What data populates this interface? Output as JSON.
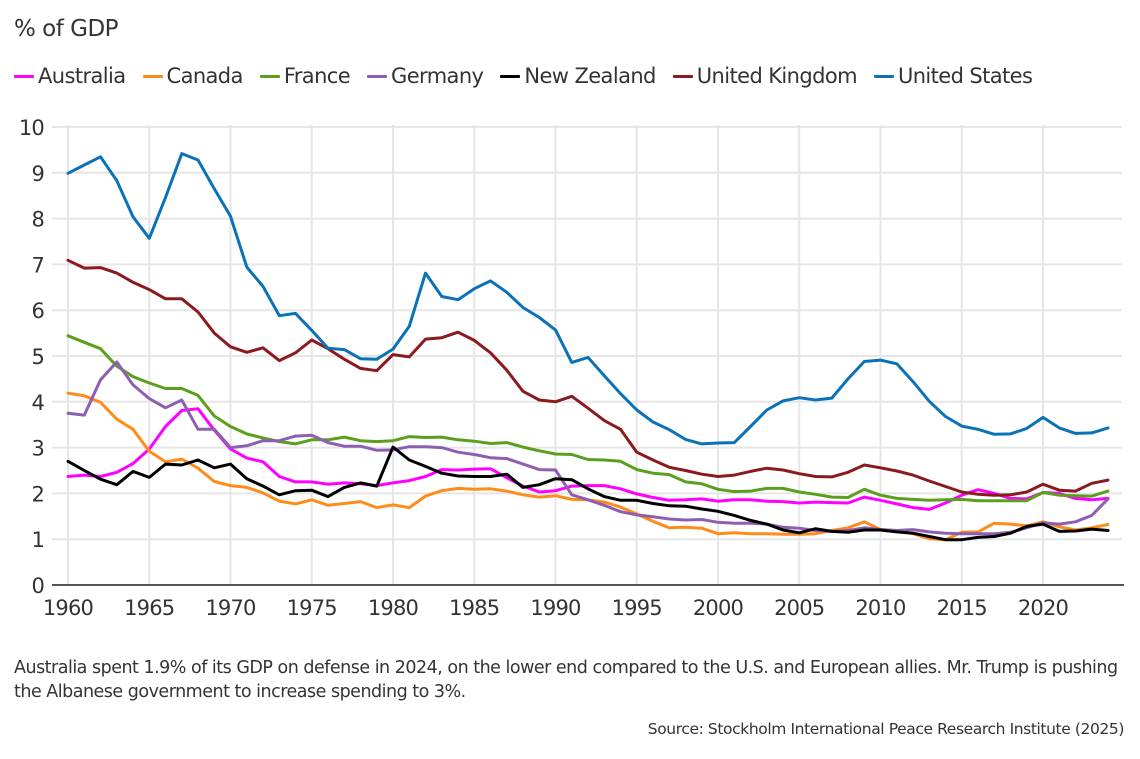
{
  "chart_data": {
    "type": "line",
    "title": "",
    "unit_label": "% of GDP",
    "xlabel": "",
    "ylabel": "% of GDP",
    "xlim": [
      1960,
      2024
    ],
    "ylim": [
      0,
      10
    ],
    "x_ticks": [
      1960,
      1965,
      1970,
      1975,
      1980,
      1985,
      1990,
      1995,
      2000,
      2005,
      2010,
      2015,
      2020
    ],
    "y_ticks": [
      0,
      1,
      2,
      3,
      4,
      5,
      6,
      7,
      8,
      9,
      10
    ],
    "grid": true,
    "legend_position": "top",
    "x": [
      1960,
      1961,
      1962,
      1963,
      1964,
      1965,
      1966,
      1967,
      1968,
      1969,
      1970,
      1971,
      1972,
      1973,
      1974,
      1975,
      1976,
      1977,
      1978,
      1979,
      1980,
      1981,
      1982,
      1983,
      1984,
      1985,
      1986,
      1987,
      1988,
      1989,
      1990,
      1991,
      1992,
      1993,
      1994,
      1995,
      1996,
      1997,
      1998,
      1999,
      2000,
      2001,
      2002,
      2003,
      2004,
      2005,
      2006,
      2007,
      2008,
      2009,
      2010,
      2011,
      2012,
      2013,
      2014,
      2015,
      2016,
      2017,
      2018,
      2019,
      2020,
      2021,
      2022,
      2023,
      2024
    ],
    "series": [
      {
        "name": "Australia",
        "color": "#ff00ff",
        "values": [
          2.37,
          2.4,
          2.37,
          2.46,
          2.65,
          2.97,
          3.46,
          3.81,
          3.85,
          3.38,
          2.97,
          2.77,
          2.69,
          2.37,
          2.25,
          2.25,
          2.2,
          2.23,
          2.21,
          2.17,
          2.23,
          2.28,
          2.37,
          2.52,
          2.51,
          2.53,
          2.54,
          2.34,
          2.16,
          2.03,
          2.06,
          2.16,
          2.17,
          2.17,
          2.1,
          1.99,
          1.91,
          1.85,
          1.86,
          1.88,
          1.83,
          1.86,
          1.86,
          1.83,
          1.82,
          1.79,
          1.81,
          1.8,
          1.79,
          1.92,
          1.85,
          1.77,
          1.69,
          1.65,
          1.79,
          1.96,
          2.08,
          2.0,
          1.89,
          1.88,
          2.02,
          2.0,
          1.89,
          1.86,
          1.89
        ]
      },
      {
        "name": "Canada",
        "color": "#ff8c1a",
        "values": [
          4.19,
          4.13,
          3.99,
          3.62,
          3.4,
          2.92,
          2.69,
          2.75,
          2.55,
          2.26,
          2.17,
          2.13,
          2.01,
          1.83,
          1.77,
          1.86,
          1.74,
          1.78,
          1.82,
          1.69,
          1.75,
          1.69,
          1.94,
          2.06,
          2.11,
          2.09,
          2.1,
          2.05,
          1.97,
          1.92,
          1.95,
          1.87,
          1.86,
          1.81,
          1.7,
          1.55,
          1.39,
          1.25,
          1.26,
          1.24,
          1.12,
          1.14,
          1.12,
          1.12,
          1.11,
          1.11,
          1.12,
          1.19,
          1.25,
          1.38,
          1.21,
          1.19,
          1.12,
          1.01,
          0.99,
          1.15,
          1.16,
          1.35,
          1.33,
          1.29,
          1.38,
          1.27,
          1.2,
          1.25,
          1.32
        ]
      },
      {
        "name": "France",
        "color": "#5aa01e",
        "values": [
          5.44,
          5.3,
          5.16,
          4.78,
          4.55,
          4.41,
          4.29,
          4.29,
          4.14,
          3.69,
          3.46,
          3.3,
          3.21,
          3.13,
          3.08,
          3.17,
          3.17,
          3.23,
          3.15,
          3.13,
          3.15,
          3.24,
          3.22,
          3.23,
          3.17,
          3.14,
          3.09,
          3.11,
          3.01,
          2.93,
          2.86,
          2.85,
          2.74,
          2.73,
          2.7,
          2.52,
          2.44,
          2.41,
          2.25,
          2.21,
          2.09,
          2.04,
          2.05,
          2.11,
          2.11,
          2.03,
          1.98,
          1.92,
          1.91,
          2.09,
          1.96,
          1.89,
          1.87,
          1.85,
          1.86,
          1.87,
          1.84,
          1.84,
          1.84,
          1.84,
          2.02,
          1.96,
          1.95,
          1.94,
          2.05
        ]
      },
      {
        "name": "Germany",
        "color": "#8e5fb0",
        "values": [
          3.75,
          3.71,
          4.48,
          4.87,
          4.37,
          4.07,
          3.87,
          4.04,
          3.4,
          3.4,
          3.0,
          3.04,
          3.15,
          3.15,
          3.25,
          3.27,
          3.11,
          3.03,
          3.03,
          2.94,
          2.95,
          3.02,
          3.02,
          3.0,
          2.9,
          2.85,
          2.78,
          2.76,
          2.64,
          2.52,
          2.51,
          1.97,
          1.86,
          1.74,
          1.6,
          1.53,
          1.49,
          1.44,
          1.42,
          1.43,
          1.37,
          1.35,
          1.35,
          1.33,
          1.26,
          1.24,
          1.19,
          1.17,
          1.19,
          1.25,
          1.21,
          1.19,
          1.21,
          1.16,
          1.13,
          1.12,
          1.12,
          1.12,
          1.15,
          1.25,
          1.36,
          1.33,
          1.38,
          1.52,
          1.88
        ]
      },
      {
        "name": "New Zealand",
        "color": "#000000",
        "values": [
          2.7,
          2.5,
          2.31,
          2.19,
          2.48,
          2.35,
          2.64,
          2.62,
          2.73,
          2.56,
          2.64,
          2.32,
          2.16,
          1.97,
          2.06,
          2.07,
          1.93,
          2.13,
          2.23,
          2.16,
          3.01,
          2.73,
          2.59,
          2.44,
          2.38,
          2.37,
          2.37,
          2.42,
          2.13,
          2.19,
          2.32,
          2.3,
          2.1,
          1.93,
          1.85,
          1.85,
          1.78,
          1.73,
          1.72,
          1.66,
          1.61,
          1.52,
          1.41,
          1.33,
          1.2,
          1.14,
          1.23,
          1.17,
          1.15,
          1.2,
          1.2,
          1.16,
          1.13,
          1.06,
          0.99,
          0.99,
          1.04,
          1.06,
          1.13,
          1.28,
          1.33,
          1.17,
          1.18,
          1.22,
          1.19
        ]
      },
      {
        "name": "United Kingdom",
        "color": "#8b1a1f",
        "values": [
          7.09,
          6.92,
          6.93,
          6.81,
          6.61,
          6.45,
          6.25,
          6.25,
          5.96,
          5.5,
          5.2,
          5.08,
          5.18,
          4.9,
          5.07,
          5.35,
          5.16,
          4.93,
          4.73,
          4.68,
          5.03,
          4.98,
          5.37,
          5.4,
          5.52,
          5.34,
          5.07,
          4.69,
          4.23,
          4.04,
          4.0,
          4.12,
          3.86,
          3.59,
          3.4,
          2.9,
          2.73,
          2.57,
          2.5,
          2.42,
          2.37,
          2.4,
          2.48,
          2.55,
          2.51,
          2.43,
          2.37,
          2.36,
          2.46,
          2.62,
          2.56,
          2.49,
          2.4,
          2.27,
          2.15,
          2.03,
          1.98,
          1.96,
          1.97,
          2.03,
          2.2,
          2.07,
          2.05,
          2.22,
          2.29
        ]
      },
      {
        "name": "United States",
        "color": "#0b72b8",
        "values": [
          8.99,
          9.17,
          9.35,
          8.83,
          8.04,
          7.57,
          8.46,
          9.42,
          9.28,
          8.65,
          8.05,
          6.94,
          6.52,
          5.88,
          5.93,
          5.56,
          5.17,
          5.14,
          4.94,
          4.93,
          5.15,
          5.65,
          6.81,
          6.3,
          6.23,
          6.47,
          6.64,
          6.39,
          6.06,
          5.84,
          5.57,
          4.86,
          4.97,
          4.57,
          4.18,
          3.82,
          3.56,
          3.39,
          3.18,
          3.08,
          3.1,
          3.11,
          3.46,
          3.82,
          4.02,
          4.09,
          4.04,
          4.08,
          4.5,
          4.88,
          4.91,
          4.83,
          4.44,
          4.01,
          3.68,
          3.47,
          3.4,
          3.29,
          3.3,
          3.42,
          3.66,
          3.43,
          3.31,
          3.32,
          3.43
        ]
      }
    ]
  },
  "caption": "Australia spent 1.9% of its GDP on defense in 2024, on the lower end compared to the U.S. and European allies. Mr. Trump is pushing the Albanese government to increase spending to 3%.",
  "source": "Source: Stockholm International Peace Research Institute (2025)"
}
